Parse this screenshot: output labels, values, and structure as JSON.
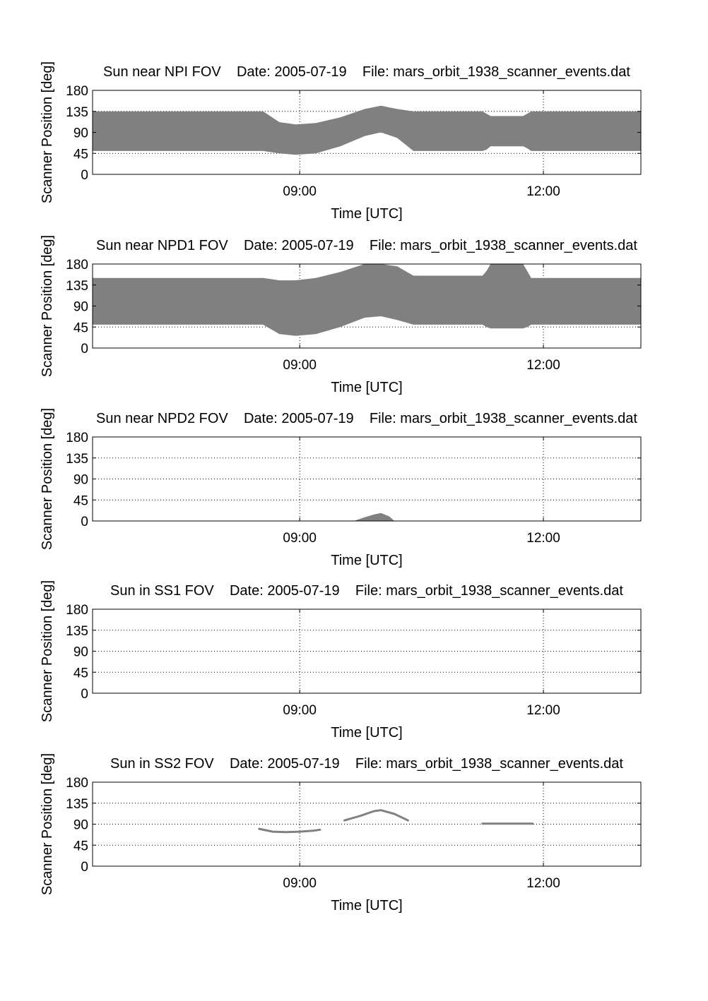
{
  "figure": {
    "ylabel": "Scanner Position [deg]",
    "xlabel": "Time [UTC]"
  },
  "chart_data": [
    {
      "type": "area",
      "title": "Sun near NPI FOV    Date: 2005-07-19    File: mars_orbit_1938_scanner_events.dat",
      "xlabel": "Time [UTC]",
      "ylabel": "Scanner Position [deg]",
      "xlim": [
        "06:27",
        "13:12"
      ],
      "ylim": [
        0,
        180
      ],
      "xticks": [
        "09:00",
        "12:00"
      ],
      "yticks": [
        0,
        45,
        90,
        135,
        180
      ],
      "grid": true,
      "fill_color": "#808080",
      "bands": [
        {
          "x": [
            "06:27",
            "08:33",
            "08:45",
            "08:57",
            "09:12",
            "09:30",
            "09:48",
            "10:00",
            "10:12",
            "10:24",
            "11:15",
            "11:18",
            "11:21",
            "11:45",
            "11:48",
            "11:51",
            "13:12"
          ],
          "lower": [
            50,
            50,
            45,
            42,
            45,
            60,
            82,
            90,
            78,
            50,
            50,
            53,
            60,
            60,
            56,
            50,
            50
          ],
          "upper": [
            135,
            135,
            112,
            107,
            110,
            122,
            140,
            147,
            140,
            135,
            135,
            130,
            125,
            125,
            130,
            135,
            135
          ]
        }
      ]
    },
    {
      "type": "area",
      "title": "Sun near NPD1 FOV    Date: 2005-07-19    File: mars_orbit_1938_scanner_events.dat",
      "xlabel": "Time [UTC]",
      "ylabel": "Scanner Position [deg]",
      "xlim": [
        "06:27",
        "13:12"
      ],
      "ylim": [
        0,
        180
      ],
      "xticks": [
        "09:00",
        "12:00"
      ],
      "yticks": [
        0,
        45,
        90,
        135,
        180
      ],
      "grid": true,
      "fill_color": "#808080",
      "bands": [
        {
          "x": [
            "06:27",
            "08:33",
            "08:45",
            "08:57",
            "09:12",
            "09:30",
            "09:48",
            "10:00",
            "10:12",
            "10:24",
            "11:15",
            "11:18",
            "11:21",
            "11:45",
            "11:48",
            "11:51",
            "13:12"
          ],
          "lower": [
            50,
            50,
            30,
            26,
            30,
            45,
            65,
            68,
            60,
            50,
            50,
            45,
            42,
            42,
            45,
            50,
            50
          ],
          "upper": [
            150,
            150,
            145,
            145,
            150,
            163,
            180,
            180,
            175,
            155,
            155,
            165,
            180,
            180,
            165,
            150,
            150
          ]
        }
      ]
    },
    {
      "type": "area",
      "title": "Sun near NPD2 FOV    Date: 2005-07-19    File: mars_orbit_1938_scanner_events.dat",
      "xlabel": "Time [UTC]",
      "ylabel": "Scanner Position [deg]",
      "xlim": [
        "06:27",
        "13:12"
      ],
      "ylim": [
        0,
        180
      ],
      "xticks": [
        "09:00",
        "12:00"
      ],
      "yticks": [
        0,
        45,
        90,
        135,
        180
      ],
      "grid": true,
      "fill_color": "#808080",
      "bands": [
        {
          "x": [
            "09:40",
            "09:48",
            "09:55",
            "10:00",
            "10:06",
            "10:10"
          ],
          "lower": [
            0,
            0,
            0,
            0,
            0,
            0
          ],
          "upper": [
            0,
            8,
            14,
            17,
            10,
            0
          ]
        }
      ]
    },
    {
      "type": "area",
      "title": "Sun in SS1 FOV    Date: 2005-07-19    File: mars_orbit_1938_scanner_events.dat",
      "xlabel": "Time [UTC]",
      "ylabel": "Scanner Position [deg]",
      "xlim": [
        "06:27",
        "13:12"
      ],
      "ylim": [
        0,
        180
      ],
      "xticks": [
        "09:00",
        "12:00"
      ],
      "yticks": [
        0,
        45,
        90,
        135,
        180
      ],
      "grid": true,
      "fill_color": "#808080",
      "bands": []
    },
    {
      "type": "line",
      "title": "Sun in SS2 FOV    Date: 2005-07-19    File: mars_orbit_1938_scanner_events.dat",
      "xlabel": "Time [UTC]",
      "ylabel": "Scanner Position [deg]",
      "xlim": [
        "06:27",
        "13:12"
      ],
      "ylim": [
        0,
        180
      ],
      "xticks": [
        "09:00",
        "12:00"
      ],
      "yticks": [
        0,
        45,
        90,
        135,
        180
      ],
      "grid": true,
      "line_color": "#808080",
      "lines": [
        {
          "x": [
            "08:30",
            "08:40",
            "08:50",
            "09:00",
            "09:10",
            "09:15"
          ],
          "y": [
            80,
            74,
            73,
            74,
            76,
            78
          ]
        },
        {
          "x": [
            "09:33",
            "09:45",
            "09:55",
            "10:00",
            "10:10",
            "10:20"
          ],
          "y": [
            98,
            108,
            118,
            120,
            112,
            98
          ]
        },
        {
          "x": [
            "11:15",
            "11:30",
            "11:45",
            "11:52"
          ],
          "y": [
            91,
            91,
            91,
            91
          ]
        }
      ]
    }
  ]
}
